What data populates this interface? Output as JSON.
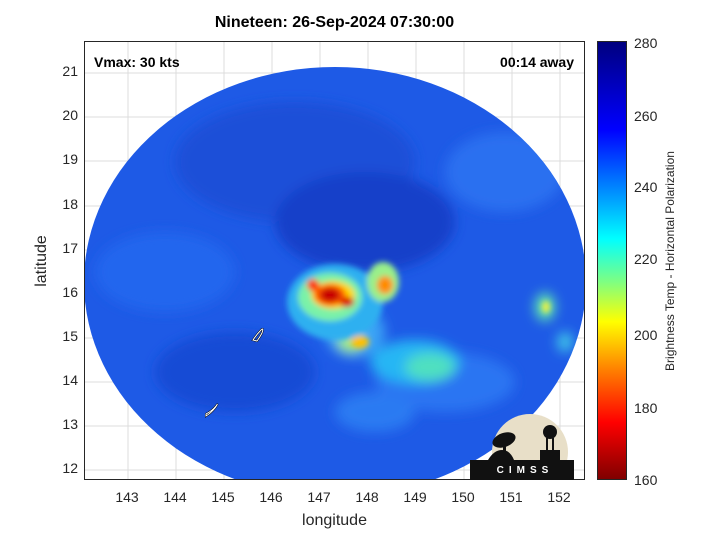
{
  "title": "Nineteen: 26-Sep-2024 07:30:00",
  "vmax_label": "Vmax: 30 kts",
  "time_away": "00:14 away",
  "axes": {
    "xlabel": "longitude",
    "ylabel": "latitude",
    "xlim": [
      142.2,
      152.6
    ],
    "ylim": [
      11.75,
      21.7
    ],
    "xticks": [
      "143",
      "144",
      "145",
      "146",
      "147",
      "148",
      "149",
      "150",
      "151",
      "152"
    ],
    "yticks": [
      "21",
      "20",
      "19",
      "18",
      "17",
      "16",
      "15",
      "14",
      "13",
      "12"
    ]
  },
  "colorbar": {
    "label": "Brightness Temp - Horizontal Polarization",
    "ticks": [
      "280",
      "260",
      "240",
      "220",
      "200",
      "180",
      "160"
    ],
    "range": [
      160,
      280
    ]
  },
  "logo": {
    "text": "CIMSS"
  },
  "colors": {
    "background_swath": "#1f5be8",
    "cold_core": "#d41010",
    "frame": "#262626"
  }
}
